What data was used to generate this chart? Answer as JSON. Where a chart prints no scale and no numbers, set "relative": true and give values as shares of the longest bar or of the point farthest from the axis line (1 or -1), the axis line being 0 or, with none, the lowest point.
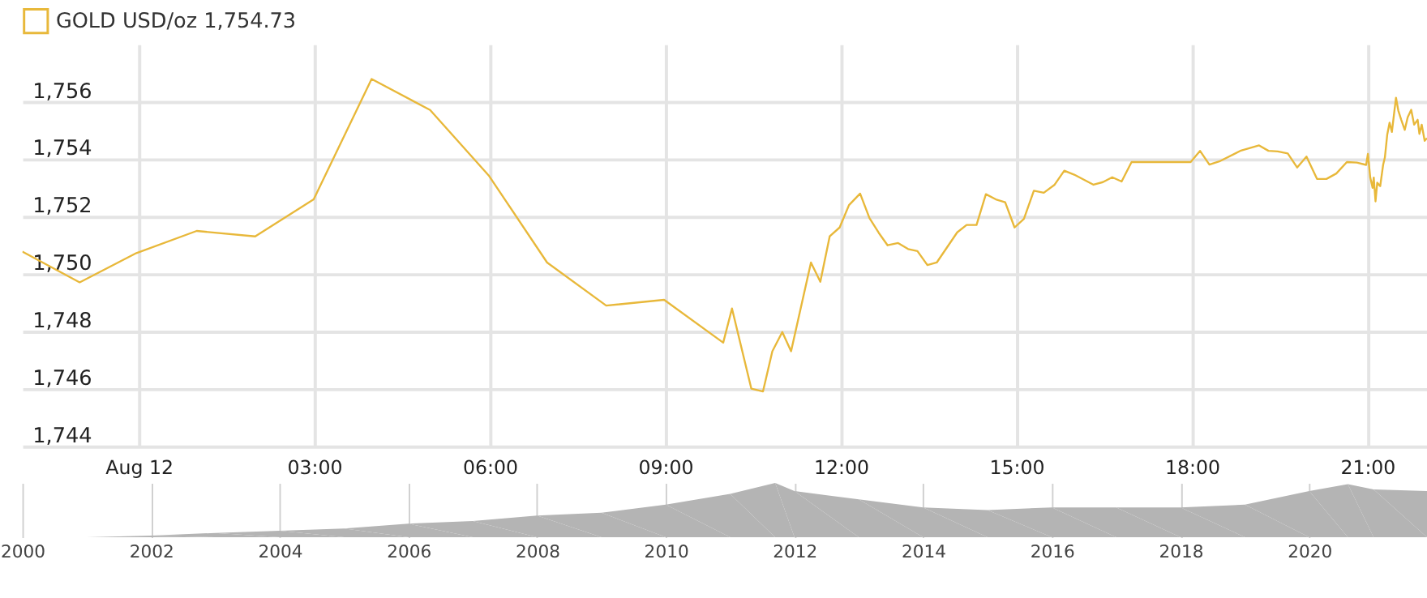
{
  "chart_data": [
    {
      "type": "line",
      "legend": "top left",
      "grid": true,
      "x": [
        -1.99,
        -1.01,
        -0.04,
        0.99,
        1.99,
        2.99,
        3.98,
        4.98,
        5.99,
        6.98,
        7.99,
        8.98,
        9.99,
        10.14,
        10.47,
        10.67,
        10.83,
        11.0,
        11.15,
        11.49,
        11.65,
        11.81,
        11.98,
        12.14,
        12.33,
        12.49,
        12.65,
        12.8,
        12.98,
        13.15,
        13.31,
        13.48,
        13.64,
        13.99,
        14.15,
        14.32,
        14.48,
        14.65,
        14.81,
        14.97,
        15.13,
        15.3,
        15.47,
        15.65,
        15.82,
        15.99,
        16.32,
        16.48,
        16.64,
        16.8,
        16.97,
        17.98,
        18.14,
        18.3,
        18.47,
        18.84,
        19.15,
        19.31,
        19.47,
        19.64,
        19.8,
        19.96,
        20.14,
        20.3,
        20.47,
        20.65,
        20.82,
        20.98,
        21.01,
        21.05,
        21.09,
        21.11,
        21.14,
        21.17,
        21.22,
        21.27,
        21.3,
        21.34,
        21.38,
        21.42,
        21.45,
        21.49,
        21.53,
        21.58,
        21.64,
        21.69,
        21.75,
        21.8,
        21.86,
        21.89,
        21.93,
        21.98,
        22.02
      ],
      "series": [
        {
          "name": "GOLD USD/oz 1,754.73",
          "color": "#e8b83a",
          "values": [
            1750.78,
            1749.71,
            1750.73,
            1751.5,
            1751.31,
            1752.6,
            1756.79,
            1755.71,
            1753.41,
            1750.4,
            1748.9,
            1749.1,
            1747.61,
            1748.8,
            1746.01,
            1745.91,
            1747.31,
            1747.98,
            1747.31,
            1750.4,
            1749.73,
            1751.31,
            1751.62,
            1752.4,
            1752.8,
            1751.95,
            1751.43,
            1751.0,
            1751.08,
            1750.87,
            1750.8,
            1750.31,
            1750.4,
            1751.45,
            1751.71,
            1751.71,
            1752.78,
            1752.6,
            1752.5,
            1751.62,
            1751.92,
            1752.9,
            1752.83,
            1753.1,
            1753.6,
            1753.46,
            1753.11,
            1753.2,
            1753.37,
            1753.22,
            1753.9,
            1753.9,
            1754.29,
            1753.81,
            1753.92,
            1754.3,
            1754.48,
            1754.29,
            1754.27,
            1754.2,
            1753.71,
            1754.09,
            1753.31,
            1753.31,
            1753.5,
            1753.9,
            1753.88,
            1753.8,
            1754.18,
            1753.36,
            1753.0,
            1753.36,
            1752.53,
            1753.18,
            1753.06,
            1753.8,
            1754.06,
            1754.85,
            1755.27,
            1754.95,
            1755.46,
            1756.14,
            1755.69,
            1755.37,
            1755.02,
            1755.46,
            1755.72,
            1755.2,
            1755.37,
            1754.88,
            1755.2,
            1754.64,
            1754.73
          ]
        }
      ],
      "xlim": [
        -1.99,
        22.02
      ],
      "ylim": [
        1744,
        1758
      ],
      "xticks": [
        {
          "value": 0,
          "label": "Aug 12"
        },
        {
          "value": 3,
          "label": "03:00"
        },
        {
          "value": 6,
          "label": "06:00"
        },
        {
          "value": 9,
          "label": "09:00"
        },
        {
          "value": 12,
          "label": "12:00"
        },
        {
          "value": 15,
          "label": "15:00"
        },
        {
          "value": 18,
          "label": "18:00"
        },
        {
          "value": 21,
          "label": "21:00"
        }
      ],
      "yticks": [
        {
          "value": 1744,
          "label": "1,744"
        },
        {
          "value": 1746,
          "label": "1,746"
        },
        {
          "value": 1748,
          "label": "1,748"
        },
        {
          "value": 1750,
          "label": "1,750"
        },
        {
          "value": 1752,
          "label": "1,752"
        },
        {
          "value": 1754,
          "label": "1,754"
        },
        {
          "value": 1756,
          "label": "1,756"
        }
      ]
    },
    {
      "type": "area",
      "relative": true,
      "grid": "x",
      "tick_labels": "x",
      "x": [
        2000,
        2001,
        2002,
        2003,
        2004,
        2005,
        2006,
        2007,
        2008,
        2009,
        2010,
        2011,
        2011.7,
        2012,
        2013,
        2014,
        2015,
        2016,
        2017,
        2018,
        2019,
        2020,
        2020.6,
        2021,
        2021.83
      ],
      "values": [
        0.0,
        0.0,
        0.03,
        0.08,
        0.12,
        0.16,
        0.25,
        0.3,
        0.4,
        0.45,
        0.6,
        0.8,
        1.0,
        0.85,
        0.7,
        0.55,
        0.5,
        0.55,
        0.55,
        0.55,
        0.6,
        0.85,
        0.98,
        0.88,
        0.85
      ],
      "color": "#b4b4b4",
      "xlim": [
        2000,
        2021.83
      ],
      "xticks": [
        2000,
        2002,
        2004,
        2006,
        2008,
        2010,
        2012,
        2014,
        2016,
        2018,
        2020
      ]
    }
  ]
}
